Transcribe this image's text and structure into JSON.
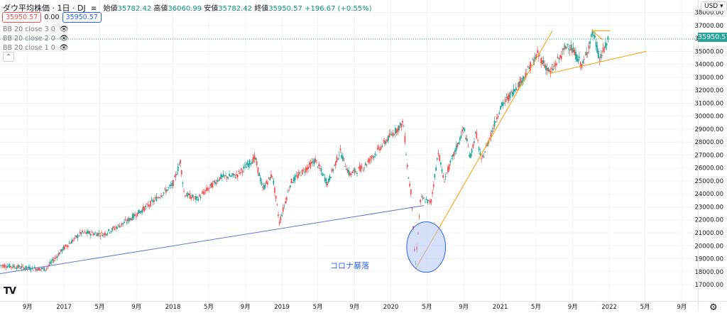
{
  "legend": {
    "symbol": "ダウ平均株価 · 1日 · DJ",
    "interval_icon": "≡",
    "open_label": "始値",
    "open": "35782.42",
    "high_label": "高値",
    "high": "36060.99",
    "low_label": "安値",
    "low": "35782.42",
    "close_label": "終値",
    "close": "35950.57",
    "change": "+196.67 (+0.55%)"
  },
  "trade": {
    "sell_price": "35950.57",
    "spread": "0.00",
    "buy_price": "35950.57"
  },
  "indicators": [
    {
      "label": "BB 20 close 3 0"
    },
    {
      "label": "BB 20 close 2 0"
    },
    {
      "label": "BB 20 close 1 0"
    }
  ],
  "icons": {
    "eye": "eye-slash-icon",
    "collapse": "chevron-up-icon",
    "logo": "tradingview-logo",
    "settings": "gear-icon"
  },
  "currency": "USD ▾",
  "last_price_tag": "35950.57",
  "annotation": "コロナ暴落",
  "logo_text": "TV",
  "colors": {
    "up": "#26a69a",
    "down": "#ef5350",
    "orange_line": "#ff9800",
    "blue_line": "#5b7bd5",
    "circle_fill": "#b7c7f4",
    "circle_stroke": "#2962ff"
  },
  "chart_data": {
    "type": "candlestick",
    "title": "ダウ平均株価",
    "y_axis": {
      "range": [
        16700,
        38500
      ],
      "ticks": [
        17000,
        18000,
        19000,
        20000,
        21000,
        22000,
        23000,
        24000,
        25000,
        26000,
        27000,
        28000,
        29000,
        30000,
        31000,
        32000,
        33000,
        34000,
        35000,
        36000,
        37000,
        38000
      ],
      "tick_format": "0.00"
    },
    "x_axis": {
      "range": [
        "2016-06-01",
        "2022-10-25"
      ],
      "ticks": [
        {
          "date": "2016-09-01",
          "label": "9月"
        },
        {
          "date": "2017-01-01",
          "label": "2017"
        },
        {
          "date": "2017-05-01",
          "label": "5月"
        },
        {
          "date": "2017-09-01",
          "label": "9月"
        },
        {
          "date": "2018-01-01",
          "label": "2018"
        },
        {
          "date": "2018-05-01",
          "label": "5月"
        },
        {
          "date": "2018-09-01",
          "label": "9月"
        },
        {
          "date": "2019-01-01",
          "label": "2019"
        },
        {
          "date": "2019-05-01",
          "label": "5月"
        },
        {
          "date": "2019-09-01",
          "label": "9月"
        },
        {
          "date": "2020-01-01",
          "label": "2020"
        },
        {
          "date": "2020-05-01",
          "label": "5月"
        },
        {
          "date": "2020-09-01",
          "label": "9月"
        },
        {
          "date": "2021-01-01",
          "label": "2021"
        },
        {
          "date": "2021-05-01",
          "label": "5月"
        },
        {
          "date": "2021-09-01",
          "label": "9月"
        },
        {
          "date": "2022-01-01",
          "label": "2022"
        },
        {
          "date": "2022-05-01",
          "label": "5月"
        },
        {
          "date": "2022-09-01",
          "label": "9月"
        }
      ]
    },
    "price_path": [
      {
        "date": "2016-06-01",
        "close": 18500
      },
      {
        "date": "2016-07-15",
        "close": 18400
      },
      {
        "date": "2016-09-15",
        "close": 18250
      },
      {
        "date": "2016-11-01",
        "close": 18200
      },
      {
        "date": "2016-12-31",
        "close": 19800
      },
      {
        "date": "2017-03-01",
        "close": 21000
      },
      {
        "date": "2017-05-15",
        "close": 20900
      },
      {
        "date": "2017-08-01",
        "close": 21900
      },
      {
        "date": "2017-10-15",
        "close": 23200
      },
      {
        "date": "2017-12-31",
        "close": 24700
      },
      {
        "date": "2018-01-26",
        "close": 26500
      },
      {
        "date": "2018-02-08",
        "close": 24000
      },
      {
        "date": "2018-03-23",
        "close": 23600
      },
      {
        "date": "2018-06-10",
        "close": 25300
      },
      {
        "date": "2018-08-01",
        "close": 25400
      },
      {
        "date": "2018-10-03",
        "close": 26800
      },
      {
        "date": "2018-10-29",
        "close": 24400
      },
      {
        "date": "2018-11-30",
        "close": 25500
      },
      {
        "date": "2018-12-24",
        "close": 21800
      },
      {
        "date": "2019-01-31",
        "close": 24900
      },
      {
        "date": "2019-04-23",
        "close": 26600
      },
      {
        "date": "2019-06-03",
        "close": 24800
      },
      {
        "date": "2019-07-15",
        "close": 27300
      },
      {
        "date": "2019-08-15",
        "close": 25500
      },
      {
        "date": "2019-10-02",
        "close": 26100
      },
      {
        "date": "2019-12-31",
        "close": 28500
      },
      {
        "date": "2020-02-12",
        "close": 29500
      },
      {
        "date": "2020-02-28",
        "close": 25400
      },
      {
        "date": "2020-03-10",
        "close": 23900
      },
      {
        "date": "2020-03-23",
        "close": 18300
      },
      {
        "date": "2020-04-10",
        "close": 23700
      },
      {
        "date": "2020-05-14",
        "close": 23300
      },
      {
        "date": "2020-06-08",
        "close": 27300
      },
      {
        "date": "2020-06-26",
        "close": 25000
      },
      {
        "date": "2020-09-02",
        "close": 29100
      },
      {
        "date": "2020-09-23",
        "close": 26800
      },
      {
        "date": "2020-10-12",
        "close": 28800
      },
      {
        "date": "2020-10-30",
        "close": 26500
      },
      {
        "date": "2020-12-31",
        "close": 30600
      },
      {
        "date": "2021-03-15",
        "close": 32800
      },
      {
        "date": "2021-05-07",
        "close": 34800
      },
      {
        "date": "2021-06-18",
        "close": 33300
      },
      {
        "date": "2021-08-16",
        "close": 35600
      },
      {
        "date": "2021-10-04",
        "close": 33900
      },
      {
        "date": "2021-11-08",
        "close": 36500
      },
      {
        "date": "2021-11-30",
        "close": 34400
      },
      {
        "date": "2021-12-31",
        "close": 35950.57
      }
    ],
    "drawings": [
      {
        "type": "trendline",
        "color": "blue",
        "from": {
          "date": "2016-05-20",
          "value": 17800
        },
        "to": {
          "date": "2020-04-20",
          "value": 23100
        }
      },
      {
        "type": "trendline",
        "color": "orange",
        "from": {
          "date": "2020-03-23",
          "value": 18200
        },
        "to": {
          "date": "2021-06-25",
          "value": 36600
        }
      },
      {
        "type": "trendline",
        "color": "orange",
        "from": {
          "date": "2021-06-15",
          "value": 33300
        },
        "to": {
          "date": "2022-05-05",
          "value": 35000
        }
      },
      {
        "type": "trendline",
        "color": "orange",
        "from": {
          "date": "2021-11-05",
          "value": 36600
        },
        "to": {
          "date": "2021-12-10",
          "value": 35900
        }
      },
      {
        "type": "trendline",
        "color": "orange",
        "from": {
          "date": "2021-11-05",
          "value": 36600
        },
        "to": {
          "date": "2022-01-05",
          "value": 36600
        }
      },
      {
        "type": "ellipse",
        "label": "コロナ暴落",
        "center": {
          "date": "2020-04-28",
          "value": 19900
        },
        "radius_days": 65,
        "radius_value": 1950
      },
      {
        "type": "price_line",
        "value": 35950.57,
        "style": "dotted"
      }
    ]
  }
}
